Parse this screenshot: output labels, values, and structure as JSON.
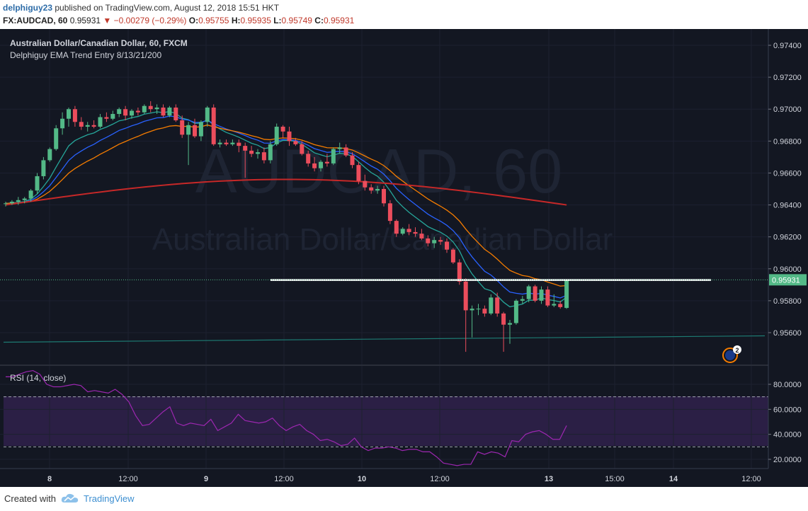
{
  "header": {
    "user": "delphiguy23",
    "published_text": "published on TradingView.com, August 12, 2018 15:51 HKT",
    "symbol": "FX:AUDCAD, 60",
    "price": "0.95931",
    "change": "▼ −0.00279 (−0.29%)",
    "ohlc": {
      "o_label": "O:",
      "o": "0.95755",
      "h_label": "H:",
      "h": "0.95935",
      "l_label": "L:",
      "l": "0.95749",
      "c_label": "C:",
      "c": "0.95931"
    }
  },
  "chart_data": {
    "type": "candlestick",
    "title": "Australian Dollar/Canadian Dollar, 60, FXCM",
    "indicator_label": "Delphiguy EMA Trend Entry 8/13/21/200",
    "watermark": "AUDCAD, 60",
    "watermark_sub": "Australian Dollar/Canadian Dollar",
    "y_ticks": [
      "0.97400",
      "0.97200",
      "0.97000",
      "0.96800",
      "0.96600",
      "0.96400",
      "0.96200",
      "0.96000",
      "0.95800",
      "0.95600"
    ],
    "ylim": [
      0.9548,
      0.975
    ],
    "last_price": "0.95931",
    "x_labels": [
      "8",
      "12:00",
      "9",
      "12:00",
      "10",
      "12:00",
      "13",
      "15:00",
      "14",
      "12:00"
    ],
    "candles": [
      [
        0.9641,
        0.9642,
        0.9639,
        0.9641
      ],
      [
        0.9641,
        0.9643,
        0.964,
        0.9642
      ],
      [
        0.9642,
        0.9645,
        0.964,
        0.9643
      ],
      [
        0.9643,
        0.9645,
        0.9641,
        0.9644
      ],
      [
        0.9644,
        0.965,
        0.9642,
        0.9649
      ],
      [
        0.9649,
        0.966,
        0.9647,
        0.9658
      ],
      [
        0.9658,
        0.967,
        0.9656,
        0.9668
      ],
      [
        0.9668,
        0.9676,
        0.9667,
        0.9675
      ],
      [
        0.9675,
        0.969,
        0.9674,
        0.9688
      ],
      [
        0.9688,
        0.9698,
        0.9684,
        0.9694
      ],
      [
        0.9694,
        0.9701,
        0.9689,
        0.97
      ],
      [
        0.97,
        0.9702,
        0.9689,
        0.9692
      ],
      [
        0.9692,
        0.9695,
        0.9687,
        0.9689
      ],
      [
        0.9689,
        0.9692,
        0.9686,
        0.969
      ],
      [
        0.969,
        0.9693,
        0.9688,
        0.9689
      ],
      [
        0.9689,
        0.9697,
        0.9688,
        0.9695
      ],
      [
        0.9695,
        0.9698,
        0.9692,
        0.9694
      ],
      [
        0.9694,
        0.9699,
        0.9693,
        0.9697
      ],
      [
        0.9697,
        0.9701,
        0.9695,
        0.97
      ],
      [
        0.97,
        0.9702,
        0.9693,
        0.9696
      ],
      [
        0.9696,
        0.97,
        0.9694,
        0.9699
      ],
      [
        0.9699,
        0.9701,
        0.9696,
        0.9698
      ],
      [
        0.9698,
        0.9703,
        0.9697,
        0.9702
      ],
      [
        0.9702,
        0.9705,
        0.9698,
        0.97
      ],
      [
        0.97,
        0.9703,
        0.9697,
        0.9701
      ],
      [
        0.9701,
        0.9703,
        0.9695,
        0.9696
      ],
      [
        0.9696,
        0.9702,
        0.9695,
        0.9701
      ],
      [
        0.9701,
        0.9703,
        0.9692,
        0.9693
      ],
      [
        0.9693,
        0.9696,
        0.9682,
        0.9684
      ],
      [
        0.9684,
        0.9692,
        0.9665,
        0.969
      ],
      [
        0.969,
        0.9694,
        0.9682,
        0.9683
      ],
      [
        0.9683,
        0.9693,
        0.968,
        0.9692
      ],
      [
        0.9692,
        0.9702,
        0.9689,
        0.9701
      ],
      [
        0.9701,
        0.9703,
        0.9677,
        0.9678
      ],
      [
        0.9678,
        0.9681,
        0.9676,
        0.9679
      ],
      [
        0.9679,
        0.9681,
        0.9677,
        0.9678
      ],
      [
        0.9678,
        0.9681,
        0.9677,
        0.9679
      ],
      [
        0.9679,
        0.9681,
        0.9673,
        0.9677
      ],
      [
        0.9677,
        0.9679,
        0.9657,
        0.9674
      ],
      [
        0.9674,
        0.9677,
        0.967,
        0.9672
      ],
      [
        0.9672,
        0.9675,
        0.9669,
        0.9673
      ],
      [
        0.9673,
        0.9676,
        0.9666,
        0.9668
      ],
      [
        0.9668,
        0.968,
        0.9666,
        0.9678
      ],
      [
        0.9678,
        0.9691,
        0.9677,
        0.9689
      ],
      [
        0.9689,
        0.969,
        0.9682,
        0.9686
      ],
      [
        0.9686,
        0.9689,
        0.9677,
        0.968
      ],
      [
        0.968,
        0.9682,
        0.9677,
        0.9678
      ],
      [
        0.9678,
        0.968,
        0.9671,
        0.9672
      ],
      [
        0.9672,
        0.9674,
        0.9664,
        0.9666
      ],
      [
        0.9666,
        0.967,
        0.9661,
        0.9663
      ],
      [
        0.9663,
        0.9668,
        0.9661,
        0.9667
      ],
      [
        0.9667,
        0.9672,
        0.9664,
        0.9666
      ],
      [
        0.9666,
        0.9676,
        0.9665,
        0.9675
      ],
      [
        0.9675,
        0.9679,
        0.9672,
        0.9676
      ],
      [
        0.9676,
        0.9678,
        0.967,
        0.9671
      ],
      [
        0.9671,
        0.9673,
        0.9663,
        0.9665
      ],
      [
        0.9665,
        0.9667,
        0.9653,
        0.9655
      ],
      [
        0.9655,
        0.9659,
        0.9649,
        0.9651
      ],
      [
        0.9651,
        0.9653,
        0.9647,
        0.9649
      ],
      [
        0.9649,
        0.9652,
        0.9647,
        0.965
      ],
      [
        0.965,
        0.9652,
        0.9639,
        0.9641
      ],
      [
        0.9641,
        0.9643,
        0.9628,
        0.963
      ],
      [
        0.963,
        0.9631,
        0.962,
        0.9622
      ],
      [
        0.9622,
        0.9626,
        0.9621,
        0.9625
      ],
      [
        0.9625,
        0.9628,
        0.9621,
        0.9623
      ],
      [
        0.9623,
        0.9626,
        0.962,
        0.9622
      ],
      [
        0.9622,
        0.9625,
        0.9618,
        0.9619
      ],
      [
        0.9619,
        0.9621,
        0.9614,
        0.9616
      ],
      [
        0.9616,
        0.962,
        0.9613,
        0.9618
      ],
      [
        0.9618,
        0.962,
        0.9615,
        0.9617
      ],
      [
        0.9617,
        0.9619,
        0.961,
        0.9612
      ],
      [
        0.9612,
        0.9613,
        0.9603,
        0.9604
      ],
      [
        0.9604,
        0.9606,
        0.959,
        0.9592
      ],
      [
        0.9592,
        0.9594,
        0.9548,
        0.9574
      ],
      [
        0.9574,
        0.9577,
        0.9557,
        0.9575
      ],
      [
        0.9575,
        0.9578,
        0.9571,
        0.9575
      ],
      [
        0.9575,
        0.9577,
        0.957,
        0.9572
      ],
      [
        0.9572,
        0.9584,
        0.9571,
        0.9582
      ],
      [
        0.9582,
        0.9585,
        0.957,
        0.9572
      ],
      [
        0.9572,
        0.9573,
        0.9548,
        0.9565
      ],
      [
        0.9565,
        0.9568,
        0.9553,
        0.9566
      ],
      [
        0.9566,
        0.9581,
        0.9565,
        0.958
      ],
      [
        0.958,
        0.9583,
        0.9578,
        0.9581
      ],
      [
        0.9581,
        0.959,
        0.9579,
        0.9589
      ],
      [
        0.9589,
        0.959,
        0.9579,
        0.958
      ],
      [
        0.958,
        0.9589,
        0.9578,
        0.9587
      ],
      [
        0.9587,
        0.9589,
        0.9576,
        0.9577
      ],
      [
        0.9577,
        0.9584,
        0.9576,
        0.9578
      ],
      [
        0.9578,
        0.958,
        0.9575,
        0.9576
      ],
      [
        0.95755,
        0.95935,
        0.95749,
        0.95931
      ]
    ],
    "ema_labels": [
      "EMA 8",
      "EMA 13",
      "EMA 21",
      "EMA 200"
    ],
    "ema_colors": [
      "#26a69a",
      "#2962ff",
      "#f57c00",
      "#c62828"
    ],
    "hline_level": 0.9593,
    "trendline": [
      0.9554,
      0.9558
    ],
    "indicator_badge": "2",
    "rsi": {
      "label": "RSI (14, close)",
      "y_ticks": [
        "80.0000",
        "60.0000",
        "40.0000",
        "20.0000"
      ],
      "ylim": [
        10,
        95
      ],
      "bands": [
        30,
        70
      ],
      "values": [
        86,
        86,
        88,
        90,
        91,
        88,
        80,
        78,
        78,
        79,
        80,
        79,
        74,
        75,
        74,
        73,
        76,
        72,
        66,
        55,
        47,
        48,
        53,
        58,
        62,
        49,
        47,
        49,
        48,
        47,
        52,
        43,
        46,
        49,
        56,
        51,
        50,
        49,
        50,
        53,
        47,
        43,
        46,
        48,
        43,
        40,
        35,
        36,
        34,
        31,
        32,
        37,
        30,
        27,
        29,
        29,
        30,
        29,
        27,
        28,
        28,
        26,
        26,
        22,
        17,
        16,
        15,
        16,
        16,
        26,
        24,
        26,
        25,
        22,
        35,
        34,
        40,
        42,
        43,
        40,
        36,
        36,
        47
      ]
    }
  },
  "footer": {
    "created_with": "Created with",
    "brand": "TradingView"
  }
}
